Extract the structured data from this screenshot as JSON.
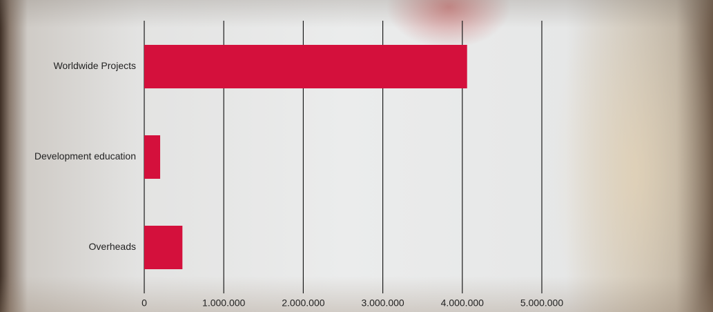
{
  "chart_data": {
    "type": "bar",
    "orientation": "horizontal",
    "categories": [
      "Worldwide Projects",
      "Development education",
      "Overheads"
    ],
    "values": [
      4060000,
      200000,
      480000
    ],
    "color": "#d4103c",
    "xlim": [
      0,
      5000000
    ],
    "xticks": [
      0,
      {
        "value": 1000000,
        "label": "1.000.000"
      },
      {
        "value": 2000000,
        "label": "2.000.000"
      },
      {
        "value": 3000000,
        "label": "3.000.000"
      },
      {
        "value": 4000000,
        "label": "4.000.000"
      },
      {
        "value": 5000000,
        "label": "5.000.000"
      }
    ],
    "grid": true
  }
}
